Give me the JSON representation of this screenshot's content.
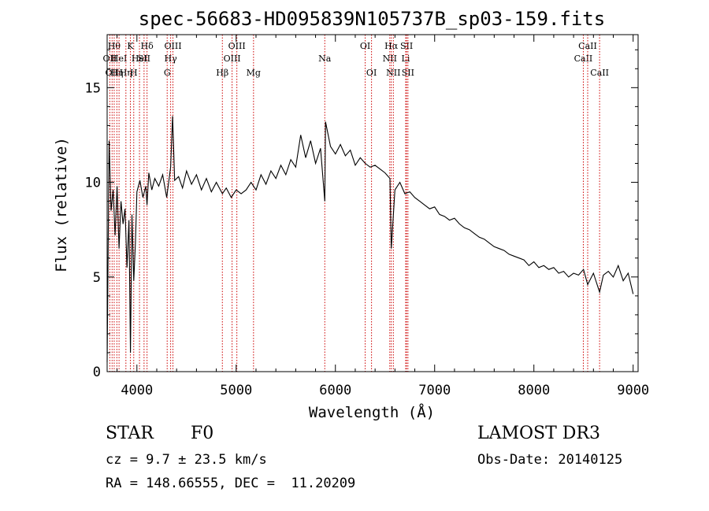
{
  "chart_data": {
    "type": "line",
    "title": "spec-56683-HD095839N105737B_sp03-159.fits",
    "xlabel": "Wavelength (Å)",
    "ylabel": "Flux (relative)",
    "xlim": [
      3700,
      9050
    ],
    "ylim": [
      0,
      17.8
    ],
    "xticks": [
      4000,
      5000,
      6000,
      7000,
      8000,
      9000
    ],
    "yticks": [
      0,
      5,
      10,
      15
    ],
    "grid": false,
    "line_color": "#000000",
    "marker_color": "#cc0000",
    "series": [
      {
        "x": [
          3700,
          3720,
          3740,
          3760,
          3780,
          3800,
          3820,
          3840,
          3860,
          3880,
          3900,
          3920,
          3935,
          3950,
          3968,
          3985,
          4000,
          4030,
          4060,
          4090,
          4102,
          4120,
          4150,
          4180,
          4220,
          4260,
          4300,
          4340,
          4360,
          4380,
          4420,
          4460,
          4500,
          4550,
          4600,
          4650,
          4700,
          4750,
          4800,
          4861,
          4900,
          4950,
          5000,
          5050,
          5100,
          5150,
          5200,
          5250,
          5300,
          5350,
          5400,
          5450,
          5500,
          5550,
          5600,
          5650,
          5700,
          5750,
          5800,
          5850,
          5893,
          5900,
          5950,
          6000,
          6050,
          6100,
          6150,
          6200,
          6250,
          6300,
          6350,
          6400,
          6450,
          6500,
          6550,
          6563,
          6600,
          6650,
          6700,
          6750,
          6800,
          6850,
          6900,
          6950,
          7000,
          7050,
          7100,
          7150,
          7200,
          7250,
          7300,
          7350,
          7400,
          7450,
          7500,
          7550,
          7600,
          7650,
          7700,
          7750,
          7800,
          7850,
          7900,
          7950,
          8000,
          8050,
          8100,
          8150,
          8200,
          8250,
          8300,
          8350,
          8400,
          8450,
          8500,
          8542,
          8600,
          8662,
          8700,
          8750,
          8800,
          8850,
          8900,
          8950,
          9000
        ],
        "y": [
          0.5,
          12.2,
          8.5,
          9.6,
          7.2,
          9.8,
          6.5,
          9.0,
          7.8,
          8.6,
          5.5,
          8.0,
          1.0,
          8.3,
          4.8,
          6.8,
          9.5,
          10.1,
          9.2,
          9.8,
          8.8,
          10.5,
          9.6,
          10.2,
          9.8,
          10.4,
          9.2,
          10.8,
          13.5,
          10.1,
          10.3,
          9.7,
          10.6,
          9.9,
          10.4,
          9.6,
          10.2,
          9.5,
          10.0,
          9.4,
          9.7,
          9.2,
          9.6,
          9.4,
          9.6,
          10.0,
          9.6,
          10.4,
          9.9,
          10.6,
          10.2,
          10.9,
          10.4,
          11.2,
          10.8,
          12.5,
          11.3,
          12.2,
          11.0,
          11.8,
          9.0,
          13.2,
          11.9,
          11.5,
          12.0,
          11.4,
          11.7,
          10.9,
          11.3,
          11.0,
          10.8,
          10.9,
          10.7,
          10.5,
          10.2,
          6.5,
          9.6,
          10.0,
          9.4,
          9.5,
          9.2,
          9.0,
          8.8,
          8.6,
          8.7,
          8.3,
          8.2,
          8.0,
          8.1,
          7.8,
          7.6,
          7.5,
          7.3,
          7.1,
          7.0,
          6.8,
          6.6,
          6.5,
          6.4,
          6.2,
          6.1,
          6.0,
          5.9,
          5.6,
          5.8,
          5.5,
          5.6,
          5.4,
          5.5,
          5.2,
          5.3,
          5.0,
          5.2,
          5.1,
          5.4,
          4.6,
          5.2,
          4.2,
          5.1,
          5.3,
          5.0,
          5.6,
          4.8,
          5.2,
          4.1
        ]
      }
    ],
    "line_markers": [
      {
        "wl": 3727,
        "label": "OII",
        "row": 2
      },
      {
        "wl": 3750,
        "label": "OII",
        "row": 3
      },
      {
        "wl": 3771,
        "label": "Hθ",
        "row": 1
      },
      {
        "wl": 3798,
        "label": "Hη",
        "row": 3
      },
      {
        "wl": 3820,
        "label": "HeI",
        "row": 2
      },
      {
        "wl": 3889,
        "label": "Hη",
        "row": 3
      },
      {
        "wl": 3934,
        "label": "K",
        "row": 1
      },
      {
        "wl": 3968,
        "label": "H",
        "row": 3
      },
      {
        "wl": 4026,
        "label": "HeI",
        "row": 2
      },
      {
        "wl": 4072,
        "label": "SII",
        "row": 2
      },
      {
        "wl": 4102,
        "label": "Hδ",
        "row": 1
      },
      {
        "wl": 4305,
        "label": "G",
        "row": 3
      },
      {
        "wl": 4340,
        "label": "Hγ",
        "row": 2
      },
      {
        "wl": 4363,
        "label": "OIII",
        "row": 1
      },
      {
        "wl": 4861,
        "label": "Hβ",
        "row": 3
      },
      {
        "wl": 4959,
        "label": "OIII",
        "row": 2
      },
      {
        "wl": 5007,
        "label": "OIII",
        "row": 1
      },
      {
        "wl": 5175,
        "label": "Mg",
        "row": 3
      },
      {
        "wl": 5893,
        "label": "Na",
        "row": 2
      },
      {
        "wl": 6300,
        "label": "OI",
        "row": 1
      },
      {
        "wl": 6364,
        "label": "OI",
        "row": 3
      },
      {
        "wl": 6548,
        "label": "NII",
        "row": 2
      },
      {
        "wl": 6563,
        "label": "Hα",
        "row": 1
      },
      {
        "wl": 6584,
        "label": "NII",
        "row": 3
      },
      {
        "wl": 6708,
        "label": "Li",
        "row": 2
      },
      {
        "wl": 6717,
        "label": "SII",
        "row": 1
      },
      {
        "wl": 6731,
        "label": "SII",
        "row": 3
      },
      {
        "wl": 8498,
        "label": "CaII",
        "row": 2
      },
      {
        "wl": 8542,
        "label": "CaII",
        "row": 1
      },
      {
        "wl": 8662,
        "label": "CaII",
        "row": 3
      }
    ]
  },
  "info": {
    "object_type": "STAR",
    "subclass": "F0",
    "survey": "LAMOST DR3",
    "cz": "cz = 9.7 ± 23.5 km/s",
    "obs_date": "Obs-Date: 20140125",
    "coords": "RA = 148.66555, DEC =  11.20209"
  }
}
